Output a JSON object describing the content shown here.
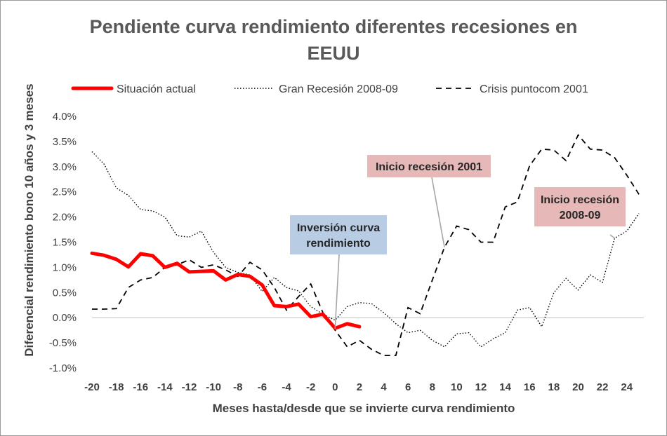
{
  "colors": {
    "actual": "#ff0000",
    "series_dark": "#000000",
    "axis": "#bfbfbf",
    "text": "#404040",
    "box_blue": "#b8cce4",
    "box_pink": "#e6b8b7",
    "leader": "#a6a6a6"
  },
  "chart_data": {
    "type": "line",
    "title_line1": "Pendiente curva rendimiento diferentes recesiones en",
    "title_line2": "EEUU",
    "xlabel": "Meses hasta/desde que se invierte curva rendimiento",
    "ylabel": "Diferencial rendimiento bono 10 años y 3 meses",
    "xlim": [
      -20,
      25
    ],
    "ylim": [
      -1.0,
      4.0
    ],
    "xticks": [
      -20,
      -18,
      -16,
      -14,
      -12,
      -10,
      -8,
      -6,
      -4,
      -2,
      0,
      2,
      4,
      6,
      8,
      10,
      12,
      14,
      16,
      18,
      20,
      22,
      24
    ],
    "yticks": [
      -1.0,
      -0.5,
      0.0,
      0.5,
      1.0,
      1.5,
      2.0,
      2.5,
      3.0,
      3.5,
      4.0
    ],
    "ytick_labels": [
      "-1.0%",
      "-0.5%",
      "0.0%",
      "0.5%",
      "1.0%",
      "1.5%",
      "2.0%",
      "2.5%",
      "3.0%",
      "3.5%",
      "4.0%"
    ],
    "legend": {
      "position": "top"
    },
    "series": [
      {
        "name": "Situación actual",
        "style": "solid-thick",
        "x": [
          -20,
          -19,
          -18,
          -17,
          -16,
          -15,
          -14,
          -13,
          -12,
          -11,
          -10,
          -9,
          -8,
          -7,
          -6,
          -5,
          -4,
          -3,
          -2,
          -1,
          0,
          1,
          2
        ],
        "values": [
          1.28,
          1.24,
          1.16,
          1.01,
          1.27,
          1.23,
          1.0,
          1.08,
          0.91,
          0.92,
          0.93,
          0.75,
          0.86,
          0.82,
          0.65,
          0.24,
          0.22,
          0.27,
          0.02,
          0.07,
          -0.21,
          -0.12,
          -0.18
        ]
      },
      {
        "name": "Gran Recesión 2008-09",
        "style": "dotted",
        "x": [
          -20,
          -19,
          -18,
          -17,
          -16,
          -15,
          -14,
          -13,
          -12,
          -11,
          -10,
          -9,
          -8,
          -7,
          -6,
          -5,
          -4,
          -3,
          -2,
          -1,
          0,
          1,
          2,
          3,
          4,
          5,
          6,
          7,
          8,
          9,
          10,
          11,
          12,
          13,
          14,
          15,
          16,
          17,
          18,
          19,
          20,
          21,
          22,
          23,
          24,
          25
        ],
        "values": [
          3.3,
          3.05,
          2.58,
          2.43,
          2.15,
          2.12,
          2.0,
          1.63,
          1.6,
          1.72,
          1.3,
          1.0,
          0.9,
          0.85,
          0.52,
          0.8,
          0.6,
          0.53,
          0.22,
          0.07,
          -0.05,
          0.22,
          0.3,
          0.28,
          0.1,
          -0.12,
          -0.3,
          -0.25,
          -0.45,
          -0.58,
          -0.32,
          -0.3,
          -0.58,
          -0.42,
          -0.3,
          0.15,
          0.2,
          -0.18,
          0.5,
          0.78,
          0.55,
          0.85,
          0.7,
          1.58,
          1.72,
          2.07
        ]
      },
      {
        "name": "Crisis puntocom 2001",
        "style": "dashed",
        "x": [
          -20,
          -19,
          -18,
          -17,
          -16,
          -15,
          -14,
          -13,
          -12,
          -11,
          -10,
          -9,
          -8,
          -7,
          -6,
          -5,
          -4,
          -3,
          -2,
          -1,
          0,
          1,
          2,
          3,
          4,
          5,
          6,
          7,
          8,
          9,
          10,
          11,
          12,
          13,
          14,
          15,
          16,
          17,
          18,
          19,
          20,
          21,
          22,
          23,
          24,
          25
        ],
        "values": [
          0.17,
          0.17,
          0.18,
          0.6,
          0.75,
          0.8,
          1.0,
          1.05,
          1.15,
          1.0,
          1.05,
          0.95,
          0.82,
          1.1,
          0.95,
          0.6,
          0.15,
          0.42,
          0.67,
          0.1,
          -0.25,
          -0.58,
          -0.45,
          -0.63,
          -0.75,
          -0.75,
          0.2,
          0.08,
          0.75,
          1.4,
          1.82,
          1.75,
          1.5,
          1.5,
          2.2,
          2.3,
          3.02,
          3.35,
          3.33,
          3.12,
          3.63,
          3.35,
          3.33,
          3.18,
          2.83,
          2.45
        ]
      }
    ],
    "annotations": [
      {
        "lines": [
          "Inversión curva",
          "rendimiento"
        ],
        "box": "blue",
        "point": [
          0,
          -0.22
        ]
      },
      {
        "lines": [
          "Inicio recesión 2001"
        ],
        "box": "pink",
        "point": [
          9,
          1.4
        ]
      },
      {
        "lines": [
          "Inicio recesión",
          "2008-09"
        ],
        "box": "pink",
        "point": [
          23,
          1.58
        ]
      }
    ]
  }
}
